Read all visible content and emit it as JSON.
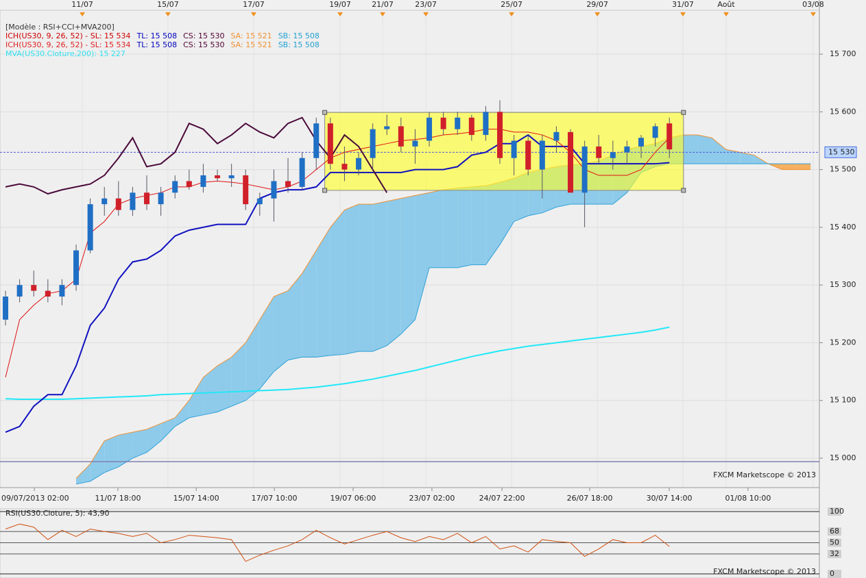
{
  "chart_data": [
    {
      "type": "candlestick",
      "legend_lines": [
        [
          {
            "text": "[Modèle : RSI+CCI+MVA200]",
            "color": "#333333"
          }
        ],
        [
          {
            "text": "ICH(US30, 9, 26, 52) -  SL: 15 534",
            "color": "#d00000"
          },
          {
            "text": "TL: 15 508",
            "color": "#0000c0"
          },
          {
            "text": "CS: 15 530",
            "color": "#500030"
          },
          {
            "text": "SA: 15 521",
            "color": "#f09030"
          },
          {
            "text": "SB: 15 508",
            "color": "#20a0d0"
          }
        ],
        [
          {
            "text": "ICH(US30, 9, 26, 52) -  SL: 15 534",
            "color": "#e02020"
          },
          {
            "text": "TL: 15 508",
            "color": "#0000c0"
          },
          {
            "text": "CS: 15 530",
            "color": "#500030"
          },
          {
            "text": "SA: 15 521",
            "color": "#f09030"
          },
          {
            "text": "SB: 15 508",
            "color": "#20a0d0"
          }
        ],
        [
          {
            "text": "MVA(US30.Cloture,200): 15 227",
            "color": "#30e0f0"
          }
        ]
      ],
      "watermark": "FXCM Marketscope © 2013",
      "xlim": [
        -0.39,
        57.62
      ],
      "ylim": [
        14949,
        15776
      ],
      "yticks": [
        {
          "value": 15000,
          "label": "15 000"
        },
        {
          "value": 15100,
          "label": "15 100"
        },
        {
          "value": 15200,
          "label": "15 200"
        },
        {
          "value": 15300,
          "label": "15 300"
        },
        {
          "value": 15400,
          "label": "15 400"
        },
        {
          "value": 15500,
          "label": "15 500"
        },
        {
          "value": 15600,
          "label": "15 600"
        },
        {
          "value": 15700,
          "label": "15 700"
        }
      ],
      "top_xticks": [
        {
          "value": 5.44,
          "label": "11/07"
        },
        {
          "value": 11.5,
          "label": "15/07"
        },
        {
          "value": 17.57,
          "label": "17/07"
        },
        {
          "value": 23.69,
          "label": "19/07"
        },
        {
          "value": 26.7,
          "label": "21/07"
        },
        {
          "value": 29.76,
          "label": "23/07"
        },
        {
          "value": 35.83,
          "label": "25/07"
        },
        {
          "value": 41.9,
          "label": "29/07"
        },
        {
          "value": 47.96,
          "label": "31/07"
        },
        {
          "value": 51.02,
          "label": "Août"
        },
        {
          "value": 57.18,
          "label": "03/08"
        }
      ],
      "xticks": [
        {
          "value": 2.04,
          "label": "09/07/2013 02:00"
        },
        {
          "value": 7.96,
          "label": "11/07 18:00"
        },
        {
          "value": 13.5,
          "label": "15/07 14:00"
        },
        {
          "value": 19.03,
          "label": "17/07 10:00"
        },
        {
          "value": 24.61,
          "label": "19/07 06:00"
        },
        {
          "value": 30.19,
          "label": "23/07 02:00"
        },
        {
          "value": 35.15,
          "label": "24/07 22:00"
        },
        {
          "value": 41.36,
          "label": "26/07 18:00"
        },
        {
          "value": 46.99,
          "label": "30/07 14:00"
        },
        {
          "value": 52.57,
          "label": "01/08 10:00"
        }
      ],
      "price_marker": {
        "value": 15530,
        "label": "15 530"
      },
      "hline": 14994,
      "box": {
        "x": [
          22.6,
          48
        ],
        "y": [
          15464,
          15599
        ]
      },
      "up_color": "#1f6fc5",
      "down_color": "#d0202a",
      "candles": {
        "open": [
          15240,
          15280,
          15300,
          15290,
          15280,
          15300,
          15360,
          15440,
          15450,
          15430,
          15460,
          15440,
          15460,
          15480,
          15470,
          15490,
          15485,
          15490,
          15440,
          15450,
          15480,
          15470,
          15520,
          15580,
          15510,
          15500,
          15520,
          15570,
          15575,
          15540,
          15550,
          15590,
          15570,
          15590,
          15560,
          15600,
          15520,
          15550,
          15500,
          15550,
          15565,
          15460,
          15540,
          15520,
          15530,
          15540,
          15555,
          15580
        ],
        "high": [
          15290,
          15310,
          15325,
          15310,
          15310,
          15370,
          15450,
          15470,
          15480,
          15470,
          15490,
          15470,
          15490,
          15500,
          15510,
          15500,
          15510,
          15500,
          15460,
          15500,
          15520,
          15530,
          15590,
          15590,
          15540,
          15530,
          15580,
          15595,
          15590,
          15570,
          15600,
          15600,
          15600,
          15595,
          15610,
          15620,
          15560,
          15560,
          15560,
          15575,
          15570,
          15550,
          15560,
          15550,
          15550,
          15560,
          15580,
          15590
        ],
        "low": [
          15230,
          15270,
          15280,
          15270,
          15265,
          15290,
          15355,
          15420,
          15420,
          15420,
          15430,
          15420,
          15450,
          15465,
          15460,
          15480,
          15470,
          15430,
          15420,
          15410,
          15460,
          15465,
          15500,
          15500,
          15480,
          15490,
          15500,
          15560,
          15530,
          15510,
          15540,
          15560,
          15560,
          15550,
          15550,
          15510,
          15490,
          15490,
          15450,
          15530,
          15460,
          15400,
          15510,
          15500,
          15510,
          15520,
          15540,
          15520
        ],
        "close": [
          15280,
          15300,
          15290,
          15280,
          15300,
          15360,
          15440,
          15450,
          15430,
          15460,
          15440,
          15460,
          15480,
          15470,
          15490,
          15485,
          15490,
          15440,
          15450,
          15480,
          15470,
          15520,
          15580,
          15510,
          15500,
          15520,
          15570,
          15575,
          15540,
          15550,
          15590,
          15570,
          15590,
          15560,
          15600,
          15520,
          15550,
          15500,
          15550,
          15565,
          15460,
          15540,
          15520,
          15530,
          15540,
          15555,
          15575,
          15535
        ]
      },
      "series": [
        {
          "color": "#20e8f8",
          "width": 2,
          "values": [
            15103,
            15102,
            15102,
            15102,
            15102,
            15103,
            15104,
            15105,
            15106,
            15107,
            15108,
            15110,
            15111,
            15112,
            15113,
            15114,
            15115,
            15116,
            15117,
            15118,
            15119,
            15121,
            15123,
            15126,
            15129,
            15133,
            15137,
            15142,
            15147,
            15152,
            15158,
            15164,
            15170,
            15176,
            15181,
            15186,
            15190,
            15194,
            15197,
            15200,
            15203,
            15206,
            15209,
            15212,
            15215,
            15218,
            15222,
            15227
          ]
        },
        {
          "color": "#1010c0",
          "width": 2,
          "values": [
            15045,
            15055,
            15090,
            15110,
            15110,
            15160,
            15230,
            15260,
            15310,
            15340,
            15345,
            15360,
            15385,
            15395,
            15400,
            15405,
            15405,
            15405,
            15450,
            15460,
            15465,
            15465,
            15470,
            15495,
            15495,
            15495,
            15495,
            15495,
            15495,
            15500,
            15500,
            15500,
            15505,
            15525,
            15530,
            15545,
            15545,
            15560,
            15540,
            15540,
            15540,
            15510,
            15510,
            15510,
            15510,
            15510,
            15510,
            15512
          ]
        },
        {
          "color": "#e01010",
          "width": 1,
          "values": [
            15140,
            15240,
            15265,
            15285,
            15290,
            15310,
            15390,
            15410,
            15440,
            15450,
            15455,
            15460,
            15470,
            15470,
            15478,
            15480,
            15478,
            15475,
            15470,
            15465,
            15470,
            15480,
            15500,
            15520,
            15530,
            15535,
            15540,
            15545,
            15550,
            15552,
            15555,
            15560,
            15562,
            15565,
            15570,
            15570,
            15565,
            15565,
            15560,
            15550,
            15530,
            15500,
            15490,
            15490,
            15490,
            15500,
            15530,
            15555
          ]
        },
        {
          "color": "#4a0a3a",
          "width": 2,
          "values": [
            15470,
            15475,
            15470,
            15458,
            15465,
            15470,
            15475,
            15490,
            15520,
            15555,
            15505,
            15510,
            15530,
            15580,
            15570,
            15545,
            15560,
            15580,
            15565,
            15555,
            15580,
            15590,
            15550,
            15520,
            15560,
            15540,
            15500,
            15460,
            null,
            null,
            null,
            null,
            null,
            null,
            null,
            null,
            null,
            null,
            null,
            null,
            null,
            null,
            null,
            null,
            null,
            null,
            null,
            null
          ]
        }
      ],
      "cloud": {
        "sa_color": "#f09030",
        "sb_color": "#2ea0d8",
        "up_fill": "#8ecbea",
        "down_fill": "#f5b060",
        "sa": [
          null,
          null,
          null,
          null,
          null,
          14965,
          14990,
          15030,
          15040,
          15045,
          15050,
          15060,
          15070,
          15100,
          15140,
          15160,
          15175,
          15200,
          15240,
          15280,
          15290,
          15320,
          15360,
          15400,
          15430,
          15440,
          15440,
          15445,
          15450,
          15455,
          15460,
          15465,
          15468,
          15470,
          15472,
          15478,
          15485,
          15495,
          15500,
          15505,
          15508,
          15510,
          15515,
          15525,
          15535,
          15540,
          15545,
          15555,
          15560,
          15560,
          15555,
          15535,
          15530,
          15525,
          15510,
          15500,
          15500,
          15500
        ],
        "sb": [
          null,
          null,
          null,
          null,
          null,
          14955,
          14960,
          14975,
          14985,
          15000,
          15010,
          15030,
          15055,
          15070,
          15075,
          15080,
          15090,
          15100,
          15120,
          15150,
          15170,
          15175,
          15175,
          15178,
          15180,
          15185,
          15185,
          15195,
          15215,
          15240,
          15330,
          15330,
          15330,
          15335,
          15335,
          15370,
          15410,
          15420,
          15425,
          15435,
          15440,
          15440,
          15440,
          15440,
          15460,
          15495,
          15505,
          15510,
          15510,
          15510,
          15510,
          15510,
          15510,
          15510,
          15510,
          15510,
          15510,
          15510
        ]
      }
    },
    {
      "type": "line",
      "title": "RSI(US30.Cloture, 5): 43,90",
      "watermark": "FXCM Marketscope © 2013",
      "color": "#d05010",
      "xlim": [
        -0.39,
        57.62
      ],
      "ylim": [
        0,
        100
      ],
      "yticks": [
        0,
        32,
        50,
        68,
        100
      ],
      "values": [
        72,
        80,
        75,
        55,
        70,
        60,
        72,
        68,
        65,
        60,
        65,
        50,
        55,
        62,
        60,
        58,
        55,
        20,
        30,
        38,
        45,
        55,
        70,
        58,
        48,
        55,
        62,
        68,
        58,
        52,
        60,
        55,
        65,
        50,
        60,
        40,
        45,
        35,
        55,
        52,
        50,
        28,
        40,
        55,
        50,
        50,
        62,
        44
      ]
    }
  ]
}
